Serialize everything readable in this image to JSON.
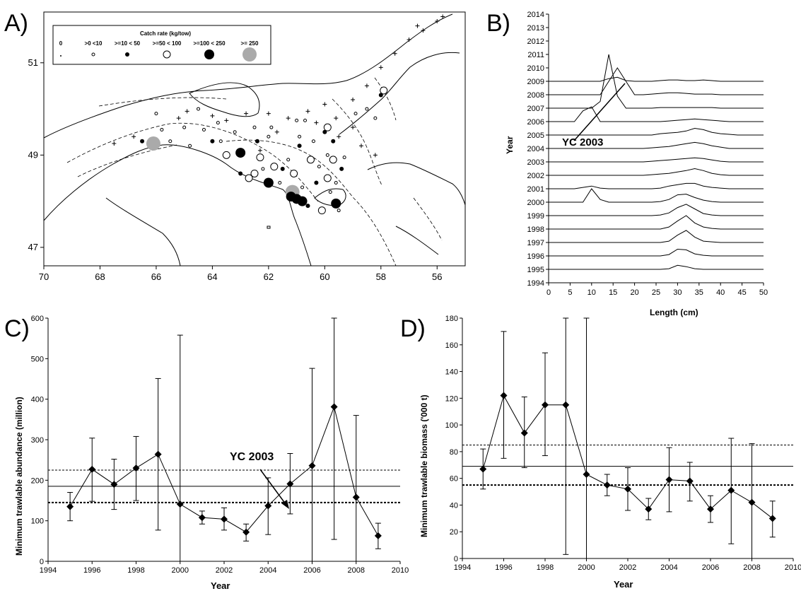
{
  "chart_data": [
    {
      "panel": "A)",
      "type": "scatter",
      "legend_title": "Catch rate (kg/tow)",
      "legend_labels": [
        "0",
        ">0 <10",
        ">=10 < 50",
        ">=50 < 100",
        ">=100 < 250",
        ">= 250"
      ],
      "x_ticks": [
        "70",
        "68",
        "66",
        "64",
        "62",
        "60",
        "58",
        "56"
      ],
      "y_ticks": [
        "51",
        "49",
        "47"
      ],
      "xlim": [
        70,
        55
      ],
      "ylim": [
        46.6,
        52.1
      ],
      "points": [
        {
          "lon": 66.1,
          "lat": 49.25,
          "cls": 5
        },
        {
          "lon": 61.15,
          "lat": 48.2,
          "cls": 5
        },
        {
          "lon": 62.0,
          "lat": 48.4,
          "cls": 4
        },
        {
          "lon": 61.2,
          "lat": 48.1,
          "cls": 4
        },
        {
          "lon": 61.0,
          "lat": 48.05,
          "cls": 4
        },
        {
          "lon": 60.8,
          "lat": 48.0,
          "cls": 4
        },
        {
          "lon": 59.6,
          "lat": 47.95,
          "cls": 4
        },
        {
          "lon": 63.0,
          "lat": 49.05,
          "cls": 4
        },
        {
          "lon": 61.1,
          "lat": 48.6,
          "cls": 3
        },
        {
          "lon": 62.5,
          "lat": 48.6,
          "cls": 3
        },
        {
          "lon": 63.5,
          "lat": 49.0,
          "cls": 3
        },
        {
          "lon": 62.3,
          "lat": 48.95,
          "cls": 3
        },
        {
          "lon": 61.8,
          "lat": 48.75,
          "cls": 3
        },
        {
          "lon": 59.9,
          "lat": 48.5,
          "cls": 3
        },
        {
          "lon": 59.9,
          "lat": 49.6,
          "cls": 3
        },
        {
          "lon": 59.7,
          "lat": 48.9,
          "cls": 3
        },
        {
          "lon": 60.5,
          "lat": 48.9,
          "cls": 3
        },
        {
          "lon": 57.9,
          "lat": 50.4,
          "cls": 3
        },
        {
          "lon": 62.7,
          "lat": 48.5,
          "cls": 3
        },
        {
          "lon": 60.1,
          "lat": 47.8,
          "cls": 3
        },
        {
          "lon": 66.5,
          "lat": 49.3,
          "cls": 2
        },
        {
          "lon": 62.4,
          "lat": 49.3,
          "cls": 2
        },
        {
          "lon": 63.0,
          "lat": 48.6,
          "cls": 2
        },
        {
          "lon": 61.5,
          "lat": 48.7,
          "cls": 2
        },
        {
          "lon": 60.3,
          "lat": 48.4,
          "cls": 2
        },
        {
          "lon": 60.0,
          "lat": 49.5,
          "cls": 2
        },
        {
          "lon": 59.7,
          "lat": 49.3,
          "cls": 2
        },
        {
          "lon": 58.0,
          "lat": 50.3,
          "cls": 2
        },
        {
          "lon": 64.0,
          "lat": 49.3,
          "cls": 2
        },
        {
          "lon": 60.6,
          "lat": 47.9,
          "cls": 2
        },
        {
          "lon": 59.4,
          "lat": 48.7,
          "cls": 2
        },
        {
          "lon": 60.9,
          "lat": 49.2,
          "cls": 2
        },
        {
          "lon": 65.0,
          "lat": 49.6,
          "cls": 1
        },
        {
          "lon": 64.3,
          "lat": 49.55,
          "cls": 1
        },
        {
          "lon": 63.8,
          "lat": 49.7,
          "cls": 1
        },
        {
          "lon": 61.9,
          "lat": 49.6,
          "cls": 1
        },
        {
          "lon": 61.0,
          "lat": 49.75,
          "cls": 1
        },
        {
          "lon": 60.7,
          "lat": 49.75,
          "cls": 1
        },
        {
          "lon": 60.9,
          "lat": 49.4,
          "cls": 1
        },
        {
          "lon": 60.4,
          "lat": 49.3,
          "cls": 1
        },
        {
          "lon": 59.9,
          "lat": 49.0,
          "cls": 1
        },
        {
          "lon": 59.3,
          "lat": 48.95,
          "cls": 1
        },
        {
          "lon": 60.8,
          "lat": 48.3,
          "cls": 1
        },
        {
          "lon": 59.8,
          "lat": 48.2,
          "cls": 1
        },
        {
          "lon": 59.5,
          "lat": 47.8,
          "cls": 1
        },
        {
          "lon": 58.9,
          "lat": 49.9,
          "cls": 1
        },
        {
          "lon": 58.5,
          "lat": 50.0,
          "cls": 1
        },
        {
          "lon": 58.2,
          "lat": 49.8,
          "cls": 1
        },
        {
          "lon": 62.0,
          "lat": 49.4,
          "cls": 1
        },
        {
          "lon": 63.2,
          "lat": 49.5,
          "cls": 1
        },
        {
          "lon": 65.5,
          "lat": 49.3,
          "cls": 1
        },
        {
          "lon": 64.8,
          "lat": 49.2,
          "cls": 1
        },
        {
          "lon": 65.8,
          "lat": 49.55,
          "cls": 1
        },
        {
          "lon": 61.3,
          "lat": 48.9,
          "cls": 1
        },
        {
          "lon": 62.2,
          "lat": 48.7,
          "cls": 1
        },
        {
          "lon": 59.6,
          "lat": 48.4,
          "cls": 1
        },
        {
          "lon": 60.2,
          "lat": 48.75,
          "cls": 1
        },
        {
          "lon": 61.6,
          "lat": 48.4,
          "cls": 1
        },
        {
          "lon": 64.5,
          "lat": 50.0,
          "cls": 1
        },
        {
          "lon": 66.0,
          "lat": 49.9,
          "cls": 1
        },
        {
          "lon": 63.7,
          "lat": 49.3,
          "cls": 1
        },
        {
          "lon": 62.5,
          "lat": 49.6,
          "cls": 1
        },
        {
          "lon": 62.8,
          "lat": 49.9,
          "cls": 0
        },
        {
          "lon": 64.9,
          "lat": 49.95,
          "cls": 0
        },
        {
          "lon": 64.0,
          "lat": 49.85,
          "cls": 0
        },
        {
          "lon": 63.5,
          "lat": 49.75,
          "cls": 0
        },
        {
          "lon": 62.0,
          "lat": 49.9,
          "cls": 0
        },
        {
          "lon": 61.3,
          "lat": 49.8,
          "cls": 0
        },
        {
          "lon": 60.6,
          "lat": 49.95,
          "cls": 0
        },
        {
          "lon": 60.0,
          "lat": 50.1,
          "cls": 0
        },
        {
          "lon": 59.0,
          "lat": 50.2,
          "cls": 0
        },
        {
          "lon": 58.5,
          "lat": 50.5,
          "cls": 0
        },
        {
          "lon": 58.0,
          "lat": 50.9,
          "cls": 0
        },
        {
          "lon": 57.5,
          "lat": 51.2,
          "cls": 0
        },
        {
          "lon": 57.0,
          "lat": 51.5,
          "cls": 0
        },
        {
          "lon": 56.5,
          "lat": 51.7,
          "cls": 0
        },
        {
          "lon": 56.0,
          "lat": 51.9,
          "cls": 0
        },
        {
          "lon": 55.8,
          "lat": 52.0,
          "cls": 0
        },
        {
          "lon": 56.7,
          "lat": 51.8,
          "cls": 0
        },
        {
          "lon": 66.8,
          "lat": 49.4,
          "cls": 0
        },
        {
          "lon": 67.5,
          "lat": 49.25,
          "cls": 0
        },
        {
          "lon": 65.2,
          "lat": 49.8,
          "cls": 0
        },
        {
          "lon": 61.7,
          "lat": 49.5,
          "cls": 0
        },
        {
          "lon": 59.5,
          "lat": 49.4,
          "cls": 0
        },
        {
          "lon": 59.0,
          "lat": 49.6,
          "cls": 0
        },
        {
          "lon": 58.7,
          "lat": 49.2,
          "cls": 0
        },
        {
          "lon": 58.2,
          "lat": 49.0,
          "cls": 0
        },
        {
          "lon": 59.6,
          "lat": 49.8,
          "cls": 0
        },
        {
          "lon": 62.3,
          "lat": 49.1,
          "cls": 0
        },
        {
          "lon": 60.3,
          "lat": 49.7,
          "cls": 0
        }
      ]
    },
    {
      "panel": "B)",
      "type": "line",
      "xlabel": "Length (cm)",
      "ylabel": "Year",
      "xlim": [
        0,
        50
      ],
      "x_ticks": [
        0,
        5,
        10,
        15,
        20,
        25,
        30,
        35,
        40,
        45,
        50
      ],
      "y_ticks": [
        1994,
        1995,
        1996,
        1997,
        1998,
        1999,
        2000,
        2001,
        2002,
        2003,
        2004,
        2005,
        2006,
        2007,
        2008,
        2009,
        2010,
        2011,
        2012,
        2013,
        2014
      ],
      "annotation": "YC 2003",
      "length_grid": [
        0,
        2,
        4,
        6,
        8,
        10,
        12,
        14,
        16,
        18,
        20,
        22,
        24,
        26,
        28,
        30,
        32,
        34,
        36,
        38,
        40,
        42,
        44,
        46,
        48,
        50
      ],
      "series": [
        {
          "year": 1995,
          "values": [
            0,
            0,
            0,
            0,
            0,
            0,
            0,
            0,
            0,
            0,
            0,
            0,
            0,
            0,
            0.05,
            0.3,
            0.2,
            0.05,
            0,
            0,
            0,
            0,
            0,
            0,
            0,
            0
          ]
        },
        {
          "year": 1996,
          "values": [
            0,
            0,
            0,
            0,
            0,
            0,
            0,
            0,
            0,
            0,
            0,
            0,
            0,
            0,
            0.1,
            0.5,
            0.45,
            0.15,
            0.05,
            0,
            0,
            0,
            0,
            0,
            0,
            0
          ]
        },
        {
          "year": 1997,
          "values": [
            0,
            0,
            0,
            0,
            0,
            0,
            0,
            0,
            0,
            0,
            0,
            0,
            0,
            0,
            0.1,
            0.55,
            0.9,
            0.4,
            0.1,
            0.05,
            0,
            0,
            0,
            0,
            0,
            0
          ]
        },
        {
          "year": 1998,
          "values": [
            0,
            0,
            0,
            0,
            0,
            0,
            0,
            0,
            0,
            0,
            0,
            0,
            0,
            0,
            0.15,
            0.6,
            1.0,
            0.45,
            0.15,
            0.05,
            0,
            0,
            0,
            0,
            0,
            0
          ]
        },
        {
          "year": 1999,
          "values": [
            0,
            0,
            0,
            0,
            0,
            0,
            0,
            0,
            0,
            0,
            0,
            0,
            0,
            0.05,
            0.2,
            0.6,
            0.85,
            0.5,
            0.15,
            0.05,
            0,
            0,
            0,
            0,
            0,
            0
          ]
        },
        {
          "year": 2000,
          "values": [
            0,
            0,
            0,
            0,
            0,
            1.0,
            0.2,
            0,
            0,
            0,
            0,
            0,
            0,
            0.05,
            0.2,
            0.55,
            0.6,
            0.35,
            0.15,
            0.05,
            0,
            0,
            0,
            0,
            0,
            0
          ]
        },
        {
          "year": 2001,
          "values": [
            0,
            0,
            0,
            0,
            0.1,
            0.2,
            0.05,
            0,
            0,
            0,
            0,
            0,
            0,
            0.05,
            0.2,
            0.3,
            0.4,
            0.4,
            0.2,
            0.1,
            0.05,
            0,
            0,
            0,
            0,
            0
          ]
        },
        {
          "year": 2002,
          "values": [
            0,
            0,
            0,
            0,
            0,
            0,
            0,
            0,
            0,
            0,
            0,
            0,
            0.05,
            0.1,
            0.15,
            0.25,
            0.35,
            0.5,
            0.35,
            0.15,
            0.05,
            0,
            0,
            0,
            0,
            0
          ]
        },
        {
          "year": 2003,
          "values": [
            0,
            0,
            0,
            0,
            0,
            0,
            0,
            0,
            0,
            0,
            0,
            0,
            0.05,
            0.1,
            0.15,
            0.2,
            0.25,
            0.3,
            0.25,
            0.15,
            0.05,
            0,
            0,
            0,
            0,
            0
          ]
        },
        {
          "year": 2004,
          "values": [
            0,
            0,
            0,
            0,
            0,
            0,
            0,
            0,
            0,
            0,
            0,
            0,
            0.05,
            0.1,
            0.15,
            0.25,
            0.35,
            0.45,
            0.35,
            0.2,
            0.1,
            0,
            0,
            0,
            0,
            0
          ]
        },
        {
          "year": 2005,
          "values": [
            0,
            0,
            0,
            0,
            0,
            0,
            0,
            0,
            0,
            0,
            0,
            0,
            0,
            0.1,
            0.15,
            0.2,
            0.3,
            0.5,
            0.4,
            0.2,
            0.1,
            0.05,
            0,
            0,
            0,
            0
          ]
        },
        {
          "year": 2006,
          "values": [
            0,
            0,
            0,
            0,
            0.8,
            1.1,
            0,
            0,
            0,
            0,
            0,
            0,
            0,
            0,
            0.05,
            0.1,
            0.15,
            0.2,
            0.15,
            0.1,
            0.05,
            0,
            0,
            0,
            0,
            0
          ]
        },
        {
          "year": 2007,
          "values": [
            0,
            0,
            0,
            0,
            0,
            0,
            0.5,
            4.0,
            0.9,
            0,
            0,
            0,
            0,
            0.05,
            0.05,
            0.05,
            0.05,
            0.05,
            0.05,
            0.05,
            0,
            0,
            0,
            0,
            0,
            0
          ]
        },
        {
          "year": 2008,
          "values": [
            0,
            0,
            0,
            0,
            0,
            0,
            0,
            1.0,
            2.0,
            1.0,
            0,
            0,
            0.05,
            0.1,
            0.15,
            0.15,
            0.1,
            0.05,
            0.05,
            0.05,
            0,
            0,
            0,
            0,
            0,
            0
          ]
        },
        {
          "year": 2009,
          "values": [
            0,
            0,
            0,
            0,
            0,
            0,
            0,
            0.2,
            0.3,
            0.05,
            0,
            0,
            0,
            0.05,
            0.1,
            0.1,
            0.05,
            0.05,
            0.1,
            0.05,
            0,
            0,
            0,
            0,
            0,
            0
          ]
        }
      ]
    },
    {
      "panel": "C)",
      "type": "line",
      "xlabel": "Year",
      "ylabel": "Minimum trawlable abundance (million)",
      "xlim": [
        1994,
        2010
      ],
      "ylim": [
        0,
        600
      ],
      "x_ticks": [
        1994,
        1996,
        1998,
        2000,
        2002,
        2004,
        2006,
        2008,
        2010
      ],
      "y_ticks": [
        0,
        100,
        200,
        300,
        400,
        500,
        600
      ],
      "annotation": "YC 2003",
      "hlines": {
        "mean": 185,
        "upper_dotted": 225,
        "lower_dotted": 145
      },
      "x": [
        1995,
        1996,
        1997,
        1998,
        1999,
        2000,
        2001,
        2002,
        2003,
        2004,
        2005,
        2006,
        2007,
        2008,
        2009
      ],
      "values": [
        135,
        227,
        190,
        230,
        264,
        141,
        108,
        104,
        72,
        137,
        191,
        236,
        381,
        158,
        63
      ],
      "err_low": [
        100,
        148,
        128,
        150,
        77,
        0,
        92,
        77,
        50,
        66,
        117,
        0,
        54,
        0,
        31
      ],
      "err_high": [
        170,
        304,
        252,
        308,
        451,
        558,
        124,
        132,
        92,
        206,
        266,
        476,
        600,
        360,
        94
      ]
    },
    {
      "panel": "D)",
      "type": "line",
      "xlabel": "Year",
      "ylabel": "Minimum trawlable biomass ('000 t)",
      "xlim": [
        1994,
        2010
      ],
      "ylim": [
        0,
        180
      ],
      "x_ticks": [
        1994,
        1996,
        1998,
        2000,
        2002,
        2004,
        2006,
        2008,
        2010
      ],
      "y_ticks": [
        0,
        20,
        40,
        60,
        80,
        100,
        120,
        140,
        160,
        180
      ],
      "hlines": {
        "mean": 69,
        "upper_dotted": 85,
        "lower_dotted": 55
      },
      "x": [
        1995,
        1996,
        1997,
        1998,
        1999,
        2000,
        2001,
        2002,
        2003,
        2004,
        2005,
        2006,
        2007,
        2008,
        2009
      ],
      "values": [
        67,
        122,
        94,
        115,
        115,
        63,
        55,
        52,
        37,
        59,
        58,
        37,
        51,
        42,
        30
      ],
      "err_low": [
        52,
        75,
        68,
        77,
        3,
        0,
        47,
        36,
        29,
        35,
        43,
        27,
        11,
        0,
        16
      ],
      "err_high": [
        82,
        170,
        121,
        154,
        180,
        180,
        63,
        68,
        45,
        83,
        72,
        47,
        90,
        86,
        43
      ]
    }
  ]
}
